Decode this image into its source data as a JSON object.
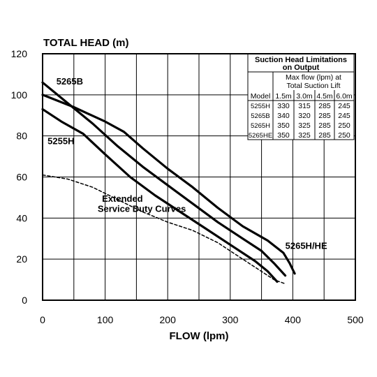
{
  "chart_data": {
    "type": "line",
    "title": "TOTAL HEAD (m)",
    "xlabel": "FLOW (lpm)",
    "ylabel": "",
    "xlim": [
      0,
      500
    ],
    "ylim": [
      0,
      120
    ],
    "x_ticks": [
      0,
      100,
      200,
      300,
      400,
      500
    ],
    "y_ticks": [
      0,
      20,
      40,
      60,
      80,
      100,
      120
    ],
    "grid": true,
    "series": [
      {
        "name": "5265B",
        "style": "solid",
        "points": [
          [
            0,
            106
          ],
          [
            40,
            96
          ],
          [
            80,
            86
          ],
          [
            120,
            75
          ],
          [
            160,
            65
          ],
          [
            200,
            56
          ],
          [
            240,
            47
          ],
          [
            280,
            38
          ],
          [
            320,
            30
          ],
          [
            350,
            24
          ],
          [
            370,
            18
          ],
          [
            388,
            12
          ]
        ]
      },
      {
        "name": "5265H/HE",
        "style": "solid",
        "points": [
          [
            0,
            100
          ],
          [
            50,
            94
          ],
          [
            100,
            87
          ],
          [
            130,
            82
          ],
          [
            160,
            74
          ],
          [
            200,
            64
          ],
          [
            240,
            55
          ],
          [
            280,
            45
          ],
          [
            320,
            36
          ],
          [
            360,
            29
          ],
          [
            385,
            23
          ],
          [
            395,
            18
          ],
          [
            403,
            13
          ]
        ]
      },
      {
        "name": "5255H",
        "style": "solid",
        "points": [
          [
            0,
            93
          ],
          [
            30,
            87
          ],
          [
            65,
            81
          ],
          [
            100,
            71
          ],
          [
            140,
            60
          ],
          [
            180,
            51
          ],
          [
            220,
            43
          ],
          [
            260,
            35
          ],
          [
            300,
            27
          ],
          [
            340,
            19
          ],
          [
            360,
            14
          ],
          [
            375,
            9
          ]
        ]
      },
      {
        "name": "",
        "style": "dashed",
        "points": [
          [
            0,
            61
          ],
          [
            40,
            59
          ],
          [
            80,
            55
          ],
          [
            120,
            49
          ],
          [
            160,
            43
          ],
          [
            200,
            38
          ],
          [
            240,
            34
          ],
          [
            280,
            28
          ],
          [
            320,
            20
          ],
          [
            350,
            14
          ],
          [
            370,
            10
          ],
          [
            388,
            8
          ]
        ]
      }
    ],
    "annotations": [
      {
        "text": "5265B",
        "x": 22,
        "y": 105
      },
      {
        "text": "5255H",
        "x": 8,
        "y": 76
      },
      {
        "text": "5265H/HE",
        "x": 388,
        "y": 25
      },
      {
        "text": "Extended",
        "x": 95,
        "y": 48
      },
      {
        "text": "Service Duty Curves",
        "x": 88,
        "y": 43
      }
    ],
    "table": {
      "title_lines": [
        "Suction Head Limitations",
        "on Output"
      ],
      "subtitle_lines": [
        "Max flow (lpm) at",
        "Total Suction Lift"
      ],
      "header": [
        "Model",
        "1.5m",
        "3.0m",
        "4.5m",
        "6.0m"
      ],
      "rows": [
        [
          "5255H",
          "330",
          "315",
          "285",
          "245"
        ],
        [
          "5265B",
          "340",
          "320",
          "285",
          "245"
        ],
        [
          "5265H",
          "350",
          "325",
          "285",
          "250"
        ],
        [
          "5265HE",
          "350",
          "325",
          "285",
          "250"
        ]
      ]
    }
  }
}
